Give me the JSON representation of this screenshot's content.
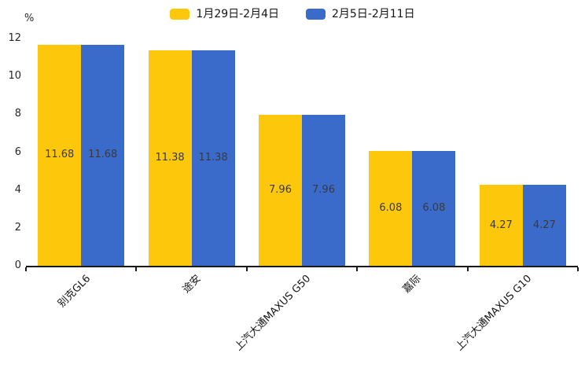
{
  "chart_data": {
    "type": "bar",
    "title": "",
    "unit_label": "%",
    "categories": [
      "别克GL6",
      "途安",
      "上汽大通MAXUS G50",
      "嘉际",
      "上汽大通MAXUS G10"
    ],
    "series": [
      {
        "name": "1月29日-2月4日",
        "color": "#FDC70C",
        "values": [
          11.68,
          11.38,
          7.96,
          6.08,
          4.27
        ]
      },
      {
        "name": "2月5日-2月11日",
        "color": "#3A6BCB",
        "values": [
          11.68,
          11.38,
          7.96,
          6.08,
          4.27
        ]
      }
    ],
    "value_label_decimals": 2,
    "ylim": [
      0,
      12
    ],
    "yticks": [
      0,
      2,
      4,
      6,
      8,
      10,
      12
    ],
    "ylabel": "",
    "xlabel": "",
    "grid": false,
    "legend_position": "top",
    "x_label_rotation_deg": 45,
    "axis_color": "#1a1a1a",
    "text_color": "#262626"
  }
}
